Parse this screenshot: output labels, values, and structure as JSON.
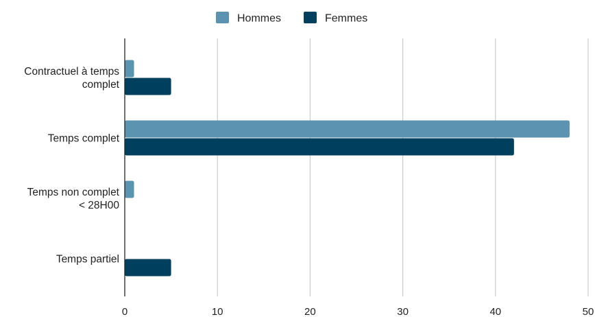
{
  "chart_data": {
    "type": "bar",
    "orientation": "horizontal",
    "categories": [
      [
        "Contractuel à temps",
        "complet"
      ],
      [
        "Temps complet"
      ],
      [
        "Temps non complet",
        "< 28H00"
      ],
      [
        "Temps partiel"
      ]
    ],
    "series": [
      {
        "name": "Hommes",
        "values": [
          1,
          48,
          1,
          0
        ],
        "color": "#5b93b1"
      },
      {
        "name": "Femmes",
        "values": [
          5,
          42,
          0,
          5
        ],
        "color": "#00405f"
      }
    ],
    "xlim": [
      0,
      50
    ],
    "xticks": [
      "0",
      "10",
      "20",
      "30",
      "40",
      "50"
    ],
    "grid": true,
    "legend": "top-center",
    "title": "",
    "xlabel": "",
    "ylabel": ""
  }
}
